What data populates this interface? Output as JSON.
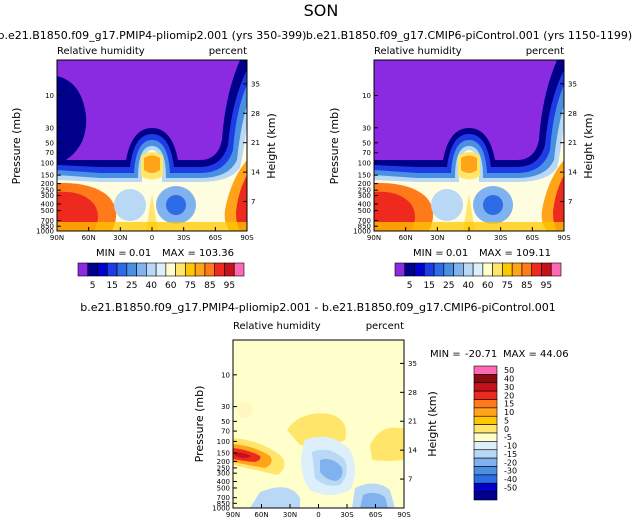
{
  "figure": {
    "title": "SON"
  },
  "colors": {
    "purple": "#8a2be2",
    "navy": "#00008b",
    "blue1": "#0000cd",
    "blue2": "#1e3ce6",
    "blue3": "#2e6be6",
    "blue4": "#4a90e2",
    "blue5": "#7fb2ee",
    "lightblue": "#b8d8f5",
    "paleblue": "#dceffa",
    "lightyellow": "#ffffcc",
    "cream": "#fffde0",
    "yellow": "#ffe66b",
    "gold": "#ffc700",
    "orange": "#ffa319",
    "darkorange": "#ff7a1a",
    "red": "#ee2a1e",
    "darkred": "#c5111a",
    "maroon": "#8b0a12",
    "pink": "#ff69b4"
  },
  "chart_data": [
    {
      "type": "heatmap",
      "title": "b.e21.B1850.f09_g17.PMIP4-pliomip2.001 (yrs 350-399)",
      "subtitle_left": "Relative humidity",
      "subtitle_right": "percent",
      "ylabel": "Pressure (mb)",
      "ylabel_right": "Height (km)",
      "xticks": [
        "90N",
        "60N",
        "30N",
        "0",
        "30S",
        "60S",
        "90S"
      ],
      "yticks": [
        "10",
        "30",
        "50",
        "70",
        "100",
        "150",
        "200",
        "250",
        "300",
        "400",
        "500",
        "700",
        "850",
        "1000"
      ],
      "yticks_right": [
        "35",
        "28",
        "21",
        "14",
        "7"
      ],
      "ylim_mb": [
        1000,
        3
      ],
      "min_label": "MIN =",
      "min": "0.01",
      "max_label": "MAX =",
      "max": "103.36",
      "colorbar_levels": [
        "5",
        "15",
        "25",
        "40",
        "60",
        "75",
        "85",
        "95"
      ]
    },
    {
      "type": "heatmap",
      "title": "b.e21.B1850.f09_g17.CMIP6-piControl.001 (yrs 1150-1199)",
      "subtitle_left": "Relative humidity",
      "subtitle_right": "percent",
      "ylabel": "Pressure (mb)",
      "ylabel_right": "Height (km)",
      "xticks": [
        "90N",
        "60N",
        "30N",
        "0",
        "30S",
        "60S",
        "90S"
      ],
      "yticks": [
        "10",
        "30",
        "50",
        "70",
        "100",
        "150",
        "200",
        "250",
        "300",
        "400",
        "500",
        "700",
        "850",
        "1000"
      ],
      "yticks_right": [
        "35",
        "28",
        "21",
        "14",
        "7"
      ],
      "ylim_mb": [
        1000,
        3
      ],
      "min_label": "MIN =",
      "min": "0.01",
      "max_label": "MAX =",
      "max": "109.11",
      "colorbar_levels": [
        "5",
        "15",
        "25",
        "40",
        "60",
        "75",
        "85",
        "95"
      ]
    },
    {
      "type": "heatmap",
      "title": "b.e21.B1850.f09_g17.PMIP4-pliomip2.001 - b.e21.B1850.f09_g17.CMIP6-piControl.001",
      "subtitle_left": "Relative humidity",
      "subtitle_right": "percent",
      "ylabel": "Pressure (mb)",
      "ylabel_right": "Height (km)",
      "xticks": [
        "90N",
        "60N",
        "30N",
        "0",
        "30S",
        "60S",
        "90S"
      ],
      "yticks": [
        "10",
        "30",
        "50",
        "70",
        "100",
        "150",
        "200",
        "250",
        "300",
        "400",
        "500",
        "700",
        "850",
        "1000"
      ],
      "yticks_right": [
        "35",
        "28",
        "21",
        "14",
        "7"
      ],
      "ylim_mb": [
        1000,
        3
      ],
      "min_label": "MIN =",
      "min": "-20.71",
      "max_label": "MAX =",
      "max": "44.06",
      "colorbar_levels": [
        "50",
        "40",
        "30",
        "20",
        "15",
        "10",
        "5",
        "0",
        "-5",
        "-10",
        "-15",
        "-20",
        "-30",
        "-40",
        "-50"
      ]
    }
  ]
}
